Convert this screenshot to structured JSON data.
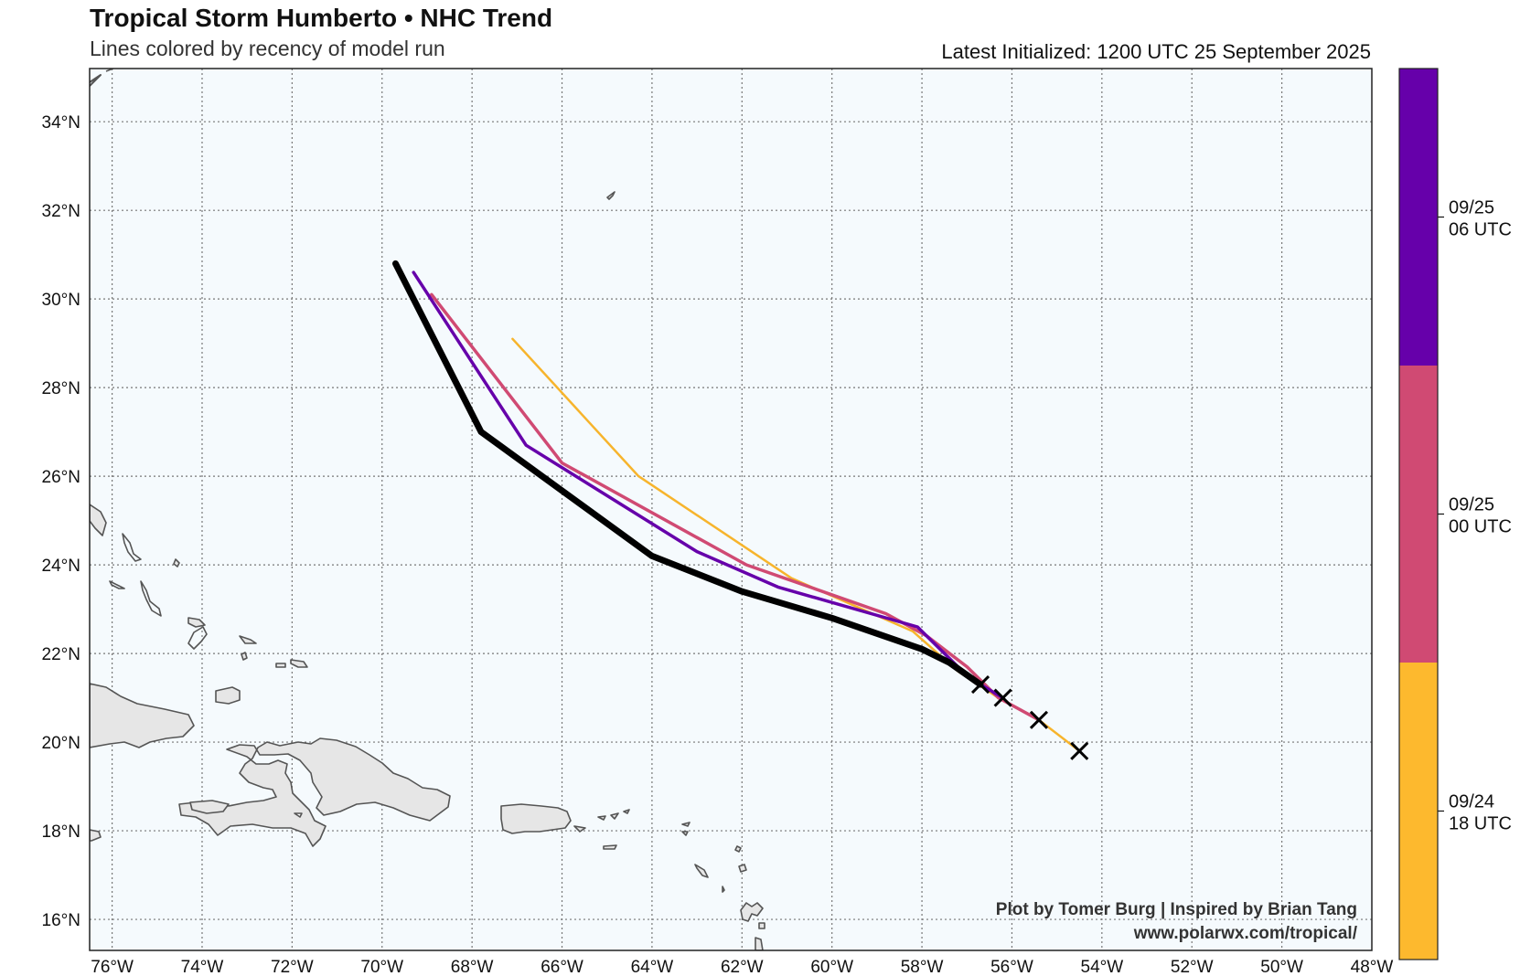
{
  "header": {
    "title": "Tropical Storm Humberto • NHC Trend",
    "subtitle": "Lines colored by recency of model run",
    "latest_initialized": "Latest Initialized: 1200 UTC 25 September 2025"
  },
  "credit": {
    "line1": "Plot by Tomer Burg | Inspired by Brian Tang",
    "line2": "www.polarwx.com/tropical/"
  },
  "map": {
    "lon_range": [
      -76.5,
      -48.0
    ],
    "lat_range": [
      15.3,
      35.2
    ],
    "ocean_color": "#f5fafd",
    "land_color": "#e6e6e6",
    "lon_ticks": [
      {
        "lon": -76,
        "label": "76°W"
      },
      {
        "lon": -74,
        "label": "74°W"
      },
      {
        "lon": -72,
        "label": "72°W"
      },
      {
        "lon": -70,
        "label": "70°W"
      },
      {
        "lon": -68,
        "label": "68°W"
      },
      {
        "lon": -66,
        "label": "66°W"
      },
      {
        "lon": -64,
        "label": "64°W"
      },
      {
        "lon": -62,
        "label": "62°W"
      },
      {
        "lon": -60,
        "label": "60°W"
      },
      {
        "lon": -58,
        "label": "58°W"
      },
      {
        "lon": -56,
        "label": "56°W"
      },
      {
        "lon": -54,
        "label": "54°W"
      },
      {
        "lon": -52,
        "label": "52°W"
      },
      {
        "lon": -50,
        "label": "50°W"
      },
      {
        "lon": -48,
        "label": "48°W"
      }
    ],
    "lat_ticks": [
      {
        "lat": 16,
        "label": "16°N"
      },
      {
        "lat": 18,
        "label": "18°N"
      },
      {
        "lat": 20,
        "label": "20°N"
      },
      {
        "lat": 22,
        "label": "22°N"
      },
      {
        "lat": 24,
        "label": "24°N"
      },
      {
        "lat": 26,
        "label": "26°N"
      },
      {
        "lat": 28,
        "label": "28°N"
      },
      {
        "lat": 30,
        "label": "30°N"
      },
      {
        "lat": 32,
        "label": "32°N"
      },
      {
        "lat": 34,
        "label": "34°N"
      }
    ],
    "tracks": [
      {
        "run": "09/24 18 UTC",
        "color": "#f7b42c",
        "width": 2.5,
        "points": [
          [
            -54.5,
            19.8
          ],
          [
            -55.4,
            20.5
          ],
          [
            -56.3,
            21.0
          ],
          [
            -57.2,
            21.6
          ],
          [
            -58.2,
            22.5
          ],
          [
            -60.9,
            23.7
          ],
          [
            -64.3,
            26.0
          ],
          [
            -67.1,
            29.1
          ]
        ]
      },
      {
        "run": "09/25 00 UTC",
        "color": "#d04a73",
        "width": 3.5,
        "points": [
          [
            -55.4,
            20.5
          ],
          [
            -56.3,
            21.0
          ],
          [
            -57.0,
            21.7
          ],
          [
            -57.9,
            22.4
          ],
          [
            -58.8,
            22.9
          ],
          [
            -61.9,
            24.0
          ],
          [
            -66.0,
            26.3
          ],
          [
            -68.9,
            30.1
          ]
        ]
      },
      {
        "run": "09/25 06 UTC",
        "color": "#6600aa",
        "width": 3.5,
        "points": [
          [
            -56.2,
            21.0
          ],
          [
            -56.7,
            21.3
          ],
          [
            -57.2,
            21.7
          ],
          [
            -58.1,
            22.6
          ],
          [
            -61.2,
            23.5
          ],
          [
            -63.0,
            24.3
          ],
          [
            -66.8,
            26.7
          ],
          [
            -69.3,
            30.6
          ]
        ]
      },
      {
        "run": "09/25 12 UTC",
        "color": "#000000",
        "width": 7,
        "points": [
          [
            -56.7,
            21.3
          ],
          [
            -57.4,
            21.8
          ],
          [
            -58.0,
            22.1
          ],
          [
            -60.0,
            22.8
          ],
          [
            -62.0,
            23.4
          ],
          [
            -64.0,
            24.2
          ],
          [
            -67.8,
            27.0
          ],
          [
            -69.7,
            30.8
          ]
        ]
      }
    ],
    "positions": [
      [
        -54.5,
        19.8
      ],
      [
        -55.4,
        20.5
      ],
      [
        -56.2,
        21.0
      ],
      [
        -56.7,
        21.3
      ]
    ]
  },
  "colorbar": {
    "segments": [
      {
        "color": "#6600aa",
        "label_line1": "09/25",
        "label_line2": "06 UTC"
      },
      {
        "color": "#d04a73",
        "label_line1": "09/25",
        "label_line2": "00 UTC"
      },
      {
        "color": "#fdb92e",
        "label_line1": "09/24",
        "label_line2": "18 UTC"
      }
    ]
  }
}
